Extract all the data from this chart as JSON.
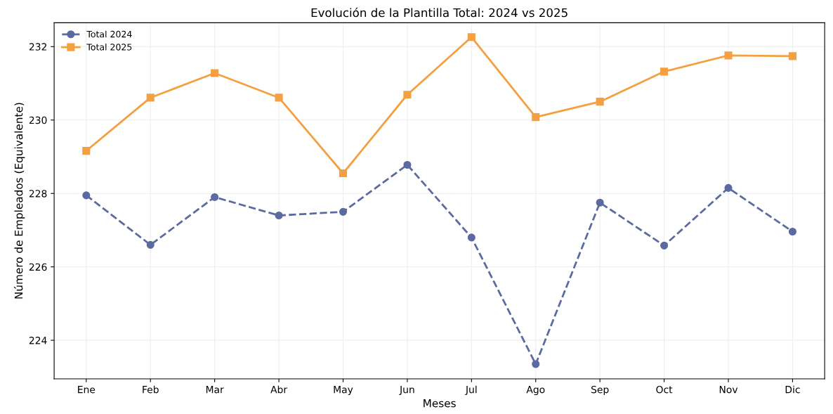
{
  "chart_data": {
    "type": "line",
    "title": "Evolución de la Plantilla Total: 2024 vs 2025",
    "xlabel": "Meses",
    "ylabel": "Número de Empleados (Equivalente)",
    "categories": [
      "Ene",
      "Feb",
      "Mar",
      "Abr",
      "May",
      "Jun",
      "Jul",
      "Ago",
      "Sep",
      "Oct",
      "Nov",
      "Dic"
    ],
    "series": [
      {
        "name": "Total 2024",
        "color": "#5b6aa0",
        "marker": "circle",
        "line_style": "dashed",
        "values": [
          227.95,
          226.6,
          227.9,
          227.4,
          227.5,
          228.78,
          226.8,
          223.35,
          227.75,
          226.58,
          228.15,
          226.96
        ]
      },
      {
        "name": "Total 2025",
        "color": "#f5a040",
        "marker": "square",
        "line_style": "solid",
        "values": [
          229.16,
          230.61,
          231.28,
          230.61,
          228.55,
          230.69,
          232.26,
          230.08,
          230.5,
          231.32,
          231.76,
          231.74
        ]
      }
    ],
    "ylim": [
      222.95,
      232.65
    ],
    "yticks": [
      224,
      226,
      228,
      230,
      232
    ],
    "grid": true,
    "legend": "top left"
  }
}
